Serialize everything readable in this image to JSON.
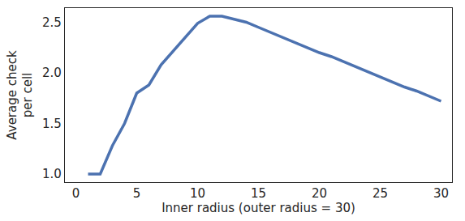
{
  "chart_data": {
    "type": "line",
    "x_label": "Inner radius (outer radius = 30)",
    "y_label": "Average check\nper cell",
    "x": [
      1,
      2,
      3,
      4,
      5,
      6,
      7,
      8,
      9,
      10,
      11,
      12,
      13,
      14,
      15,
      16,
      17,
      18,
      19,
      20,
      21,
      22,
      23,
      24,
      25,
      26,
      27,
      28,
      29,
      30
    ],
    "values": [
      1.0,
      1.0,
      1.28,
      1.5,
      1.8,
      1.88,
      2.08,
      2.22,
      2.36,
      2.49,
      2.56,
      2.56,
      2.53,
      2.5,
      2.45,
      2.4,
      2.35,
      2.3,
      2.25,
      2.2,
      2.16,
      2.11,
      2.06,
      2.01,
      1.96,
      1.91,
      1.86,
      1.82,
      1.77,
      1.72
    ],
    "color": "#4c72b0",
    "xlim": [
      -0.9,
      30.9
    ],
    "xticks": [
      0,
      5,
      10,
      15,
      20,
      25,
      30
    ],
    "ylim": [
      0.92,
      2.64
    ],
    "yticks": [
      {
        "value": 1.0,
        "label": "1.0"
      },
      {
        "value": 1.5,
        "label": "1.5"
      },
      {
        "value": 2.0,
        "label": "2.0"
      },
      {
        "value": 2.5,
        "label": "2.5"
      }
    ],
    "grid": false
  }
}
